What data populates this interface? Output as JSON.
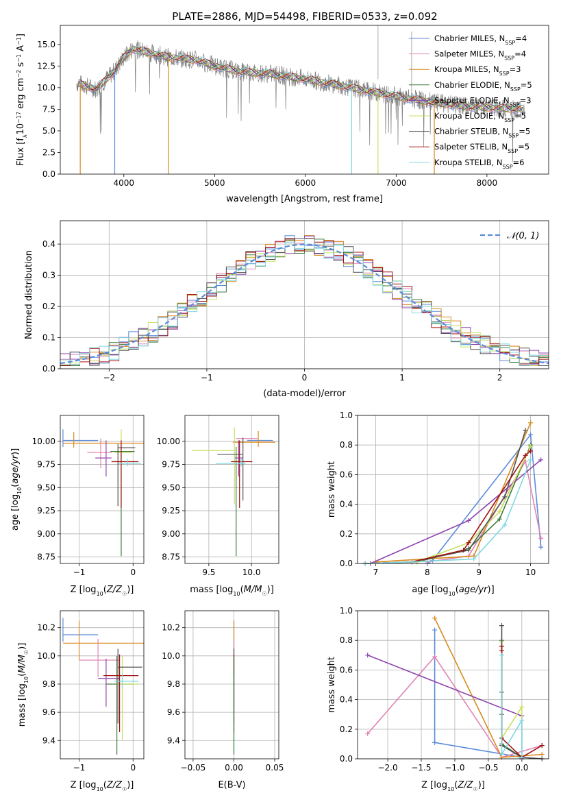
{
  "figure_title": "PLATE=2886, MJD=54498, FIBERID=0533, z=0.092",
  "series_colors": {
    "Chabrier MILES": "#5b8bd9",
    "Salpeter MILES": "#e084b4",
    "Kroupa MILES": "#d88a1c",
    "Chabrier ELODIE": "#3e7a3e",
    "Salpeter ELODIE": "#8e44ad",
    "Kroupa ELODIE": "#c8e060",
    "Chabrier STELIB": "#505050",
    "Salpeter STELIB": "#a01010",
    "Kroupa STELIB": "#7fd8e0"
  },
  "chart_data": [
    {
      "id": "spectrum",
      "type": "line",
      "xlabel": "wavelength [Angstrom, rest frame]",
      "ylabel": "Flux [f_λ10^-17 erg cm^-2 s^-1 A^-1]",
      "xlim": [
        3300,
        8680
      ],
      "ylim": [
        0,
        17.2
      ],
      "xticks": [
        4000,
        5000,
        6000,
        7000,
        8000
      ],
      "yticks": [
        0.0,
        2.5,
        5.0,
        7.5,
        10.0,
        12.5,
        15.0
      ],
      "grid": false,
      "legend_position": "upper right",
      "legend": [
        {
          "name": "Chabrier MILES",
          "nssp": "4"
        },
        {
          "name": "Salpeter MILES",
          "nssp": "4"
        },
        {
          "name": "Kroupa MILES",
          "nssp": "3"
        },
        {
          "name": "Chabrier ELODIE",
          "nssp": "5"
        },
        {
          "name": "Salpeter ELODIE",
          "nssp": "3"
        },
        {
          "name": "Kroupa ELODIE",
          "nssp": "5"
        },
        {
          "name": "Chabrier STELIB",
          "nssp": "5"
        },
        {
          "name": "Salpeter STELIB",
          "nssp": "5"
        },
        {
          "name": "Kroupa STELIB",
          "nssp": "6"
        }
      ],
      "data_envelope": {
        "x": [
          3500,
          3700,
          3900,
          4000,
          4100,
          4300,
          4500,
          4800,
          5000,
          5300,
          5600,
          6000,
          6500,
          7000,
          7400,
          7800,
          8400
        ],
        "y": [
          10.5,
          9.8,
          12.0,
          13.5,
          14.5,
          14.0,
          13.5,
          13.2,
          12.5,
          11.8,
          11.6,
          11.0,
          10.0,
          9.0,
          8.3,
          7.8,
          7.5
        ]
      },
      "model_spikes": [
        {
          "x": 3520,
          "series": "Kroupa MILES"
        },
        {
          "x": 3900,
          "series": "Chabrier MILES"
        },
        {
          "x": 4490,
          "series": "Kroupa MILES"
        },
        {
          "x": 6510,
          "series": "Kroupa STELIB"
        },
        {
          "x": 6800,
          "series": "Kroupa ELODIE"
        },
        {
          "x": 7420,
          "series": "Kroupa MILES"
        }
      ]
    },
    {
      "id": "residuals",
      "type": "step",
      "xlabel": "(data-model)/error",
      "ylabel": "Normed distribution",
      "xlim": [
        -2.5,
        2.5
      ],
      "ylim": [
        0,
        0.475
      ],
      "xticks": [
        -2,
        -1,
        0,
        1,
        2
      ],
      "yticks": [
        0.0,
        0.1,
        0.2,
        0.3,
        0.4
      ],
      "grid": true,
      "legend_position": "upper right",
      "legend": [
        {
          "name": "𝒩(0, 1)",
          "color": "#5b8bd9",
          "style": "dashed"
        }
      ],
      "bin_width": 0.1,
      "note_bins": "histograms approximate a unit normal"
    },
    {
      "id": "age_vs_Z",
      "type": "errorbar",
      "xlabel": "Z [log10(Z/Z☉)]",
      "ylabel": "age  [log10(age/yr)]",
      "xlim": [
        -1.35,
        0.2
      ],
      "ylim": [
        8.68,
        10.28
      ],
      "xticks": [
        -1,
        0
      ],
      "yticks": [
        8.75,
        9.0,
        9.25,
        9.5,
        9.75,
        10.0
      ],
      "grid": true,
      "points": [
        {
          "series": "Chabrier MILES",
          "x": -1.3,
          "y": 10.01,
          "xerr": [
            0.0,
            0.65
          ],
          "yerr": [
            0.07,
            0.12
          ]
        },
        {
          "series": "Salpeter MILES",
          "x": -0.6,
          "y": 9.88,
          "xerr": [
            0.25,
            0.2
          ],
          "yerr": [
            0.17,
            0.15
          ]
        },
        {
          "series": "Kroupa MILES",
          "x": -1.1,
          "y": 9.98,
          "xerr": [
            0.2,
            1.3
          ],
          "yerr": [
            0.05,
            0.12
          ]
        },
        {
          "series": "Chabrier ELODIE",
          "x": -0.22,
          "y": 9.89,
          "xerr": [
            0.2,
            0.25
          ],
          "yerr": [
            1.13,
            0.08
          ]
        },
        {
          "series": "Salpeter ELODIE",
          "x": -0.5,
          "y": 9.82,
          "xerr": [
            0.2,
            0.1
          ],
          "yerr": [
            0.2,
            0.19
          ]
        },
        {
          "series": "Kroupa ELODIE",
          "x": -0.22,
          "y": 9.88,
          "xerr": [
            0.12,
            0.2
          ],
          "yerr": [
            0.58,
            0.25
          ]
        },
        {
          "series": "Chabrier STELIB",
          "x": -0.28,
          "y": 9.93,
          "xerr": [
            0.0,
            0.32
          ],
          "yerr": [
            0.63,
            0.04
          ]
        },
        {
          "series": "Salpeter STELIB",
          "x": -0.22,
          "y": 9.78,
          "xerr": [
            0.18,
            0.32
          ],
          "yerr": [
            0.5,
            0.23
          ]
        },
        {
          "series": "Kroupa STELIB",
          "x": -0.1,
          "y": 9.76,
          "xerr": [
            0.17,
            0.25
          ],
          "yerr": [
            0.03,
            0.05
          ]
        }
      ]
    },
    {
      "id": "age_vs_mass",
      "type": "errorbar",
      "xlabel": "mass [log10(M/M☉)]",
      "ylabel": "",
      "xlim": [
        9.22,
        10.32
      ],
      "ylim": [
        8.68,
        10.28
      ],
      "xticks": [
        9.5,
        10.0
      ],
      "yticks": [
        8.75,
        9.0,
        9.25,
        9.5,
        9.75,
        10.0
      ],
      "grid": true,
      "points": [
        {
          "series": "Chabrier MILES",
          "x": 10.15,
          "y": 10.01,
          "xerr": [
            0.2,
            0.1
          ],
          "yerr": [
            0.0,
            0.0
          ]
        },
        {
          "series": "Salpeter MILES",
          "x": 9.97,
          "y": 10.03,
          "xerr": [
            0.15,
            0.1
          ],
          "yerr": [
            0.0,
            0.0
          ]
        },
        {
          "series": "Kroupa MILES",
          "x": 10.08,
          "y": 9.99,
          "xerr": [
            0.3,
            0.2
          ],
          "yerr": [
            0.05,
            0.12
          ]
        },
        {
          "series": "Chabrier ELODIE",
          "x": 9.82,
          "y": 9.89,
          "xerr": [
            0.0,
            0.0
          ],
          "yerr": [
            1.13,
            0.05
          ]
        },
        {
          "series": "Salpeter ELODIE",
          "x": 9.85,
          "y": 9.82,
          "xerr": [
            0.05,
            0.05
          ],
          "yerr": [
            0.2,
            0.19
          ]
        },
        {
          "series": "Kroupa ELODIE",
          "x": 9.8,
          "y": 9.9,
          "xerr": [
            0.5,
            0.0
          ],
          "yerr": [
            0.58,
            0.25
          ]
        },
        {
          "series": "Chabrier STELIB",
          "x": 9.9,
          "y": 9.86,
          "xerr": [
            0.3,
            0.0
          ],
          "yerr": [
            0.5,
            0.18
          ]
        },
        {
          "series": "Salpeter STELIB",
          "x": 9.86,
          "y": 9.78,
          "xerr": [
            0.1,
            0.15
          ],
          "yerr": [
            0.5,
            0.23
          ]
        },
        {
          "series": "Kroupa STELIB",
          "x": 9.88,
          "y": 9.76,
          "xerr": [
            0.3,
            0.05
          ],
          "yerr": [
            0.03,
            0.05
          ]
        }
      ]
    },
    {
      "id": "weight_vs_age",
      "type": "line",
      "xlabel": "age  [log10(age/yr)]",
      "ylabel": "mass weight",
      "xlim": [
        6.65,
        10.35
      ],
      "ylim": [
        0,
        1.0
      ],
      "xticks": [
        7,
        8,
        9,
        10
      ],
      "yticks": [
        0.0,
        0.2,
        0.4,
        0.6,
        0.8,
        1.0
      ],
      "grid": true,
      "series": [
        {
          "name": "Chabrier MILES",
          "x": [
            8.0,
            8.1,
            10.0,
            10.2
          ],
          "y": [
            0.0,
            0.02,
            0.87,
            0.11
          ]
        },
        {
          "name": "Salpeter MILES",
          "x": [
            8.0,
            8.8,
            9.9,
            10.2
          ],
          "y": [
            0.01,
            0.05,
            0.69,
            0.17
          ]
        },
        {
          "name": "Kroupa MILES",
          "x": [
            7.0,
            8.9,
            10.0
          ],
          "y": [
            0.01,
            0.05,
            0.95
          ]
        },
        {
          "name": "Chabrier ELODIE",
          "x": [
            6.8,
            7.8,
            8.8,
            9.4,
            10.0
          ],
          "y": [
            0.0,
            0.01,
            0.1,
            0.3,
            0.8
          ]
        },
        {
          "name": "Salpeter ELODIE",
          "x": [
            6.9,
            8.8,
            10.2
          ],
          "y": [
            0.0,
            0.29,
            0.7
          ]
        },
        {
          "name": "Kroupa ELODIE",
          "x": [
            6.8,
            7.8,
            8.8,
            9.4,
            10.0
          ],
          "y": [
            0.0,
            0.01,
            0.14,
            0.35,
            0.79
          ]
        },
        {
          "name": "Chabrier STELIB",
          "x": [
            6.8,
            7.7,
            8.8,
            9.5,
            9.9
          ],
          "y": [
            0.0,
            0.01,
            0.09,
            0.45,
            0.9
          ]
        },
        {
          "name": "Salpeter STELIB",
          "x": [
            6.8,
            7.7,
            8.7,
            8.8,
            9.9,
            10.0
          ],
          "y": [
            0.0,
            0.01,
            0.09,
            0.14,
            0.73,
            0.76
          ]
        },
        {
          "name": "Kroupa STELIB",
          "x": [
            6.8,
            7.7,
            8.9,
            9.5,
            10.0
          ],
          "y": [
            0.0,
            0.01,
            0.03,
            0.26,
            0.7
          ]
        }
      ]
    },
    {
      "id": "mass_vs_Z",
      "type": "errorbar",
      "xlabel": "Z [log10(Z/Z☉)]",
      "ylabel": "mass [log10(M/M☉)]",
      "xlim": [
        -1.35,
        0.2
      ],
      "ylim": [
        9.27,
        10.32
      ],
      "xticks": [
        -1,
        0
      ],
      "yticks": [
        9.4,
        9.6,
        9.8,
        10.0,
        10.2
      ],
      "grid": true,
      "points": [
        {
          "series": "Chabrier MILES",
          "x": -1.3,
          "y": 10.15,
          "xerr": [
            0.0,
            0.65
          ],
          "yerr": [
            0.05,
            0.12
          ]
        },
        {
          "series": "Salpeter MILES",
          "x": -0.65,
          "y": 9.97,
          "xerr": [
            0.35,
            0.4
          ],
          "yerr": [
            0.12,
            0.15
          ]
        },
        {
          "series": "Kroupa MILES",
          "x": -1.0,
          "y": 10.09,
          "xerr": [
            0.3,
            1.2
          ],
          "yerr": [
            0.12,
            0.16
          ]
        },
        {
          "series": "Chabrier ELODIE",
          "x": -0.3,
          "y": 9.8,
          "xerr": [
            0.2,
            0.3
          ],
          "yerr": [
            0.5,
            0.2
          ]
        },
        {
          "series": "Salpeter ELODIE",
          "x": -0.5,
          "y": 9.84,
          "xerr": [
            0.15,
            0.25
          ],
          "yerr": [
            0.2,
            0.14
          ]
        },
        {
          "series": "Kroupa ELODIE",
          "x": -0.2,
          "y": 9.8,
          "xerr": [
            0.1,
            0.3
          ],
          "yerr": [
            0.4,
            0.2
          ]
        },
        {
          "series": "Chabrier STELIB",
          "x": -0.28,
          "y": 9.92,
          "xerr": [
            0.0,
            0.45
          ],
          "yerr": [
            0.4,
            0.13
          ]
        },
        {
          "series": "Salpeter STELIB",
          "x": -0.25,
          "y": 9.86,
          "xerr": [
            0.3,
            0.35
          ],
          "yerr": [
            0.4,
            0.15
          ]
        },
        {
          "series": "Kroupa STELIB",
          "x": -0.2,
          "y": 9.82,
          "xerr": [
            0.15,
            0.3
          ],
          "yerr": [
            0.05,
            0.05
          ]
        }
      ]
    },
    {
      "id": "mass_vs_ebv",
      "type": "errorbar",
      "xlabel": "E(B-V)",
      "ylabel": "",
      "xlim": [
        -0.06,
        0.055
      ],
      "ylim": [
        9.27,
        10.32
      ],
      "xticks": [
        -0.05,
        0.0,
        0.05
      ],
      "yticks": [
        9.4,
        9.6,
        9.8,
        10.0,
        10.2
      ],
      "grid": true,
      "points": [
        {
          "series": "Chabrier MILES",
          "x": 0.0,
          "y": 10.15,
          "xerr": [
            0,
            0
          ],
          "yerr": [
            0.12,
            0.1
          ]
        },
        {
          "series": "Kroupa MILES",
          "x": 0.0,
          "y": 10.09,
          "xerr": [
            0,
            0
          ],
          "yerr": [
            0.12,
            0.16
          ]
        },
        {
          "series": "Salpeter MILES",
          "x": 0.0,
          "y": 9.97,
          "xerr": [
            0,
            0
          ],
          "yerr": [
            0.12,
            0.15
          ]
        },
        {
          "series": "Salpeter ELODIE",
          "x": 0.0,
          "y": 9.84,
          "xerr": [
            0,
            0
          ],
          "yerr": [
            0.2,
            0.14
          ]
        },
        {
          "series": "Kroupa ELODIE",
          "x": 0.0,
          "y": 9.8,
          "xerr": [
            0,
            0
          ],
          "yerr": [
            0.4,
            0.2
          ]
        },
        {
          "series": "Chabrier STELIB",
          "x": 0.0,
          "y": 9.92,
          "xerr": [
            0,
            0
          ],
          "yerr": [
            0.4,
            0.13
          ]
        },
        {
          "series": "Salpeter STELIB",
          "x": 0.0,
          "y": 9.86,
          "xerr": [
            0,
            0
          ],
          "yerr": [
            0.4,
            0.15
          ]
        },
        {
          "series": "Kroupa STELIB",
          "x": 0.0,
          "y": 9.82,
          "xerr": [
            0,
            0
          ],
          "yerr": [
            0.5,
            0.05
          ]
        },
        {
          "series": "Chabrier ELODIE",
          "x": 0.0,
          "y": 9.8,
          "xerr": [
            0,
            0
          ],
          "yerr": [
            0.5,
            0.2
          ]
        }
      ]
    },
    {
      "id": "weight_vs_Z",
      "type": "line",
      "xlabel": "Z [log10(Z/Z☉)]",
      "ylabel": "mass weight",
      "xlim": [
        -2.45,
        0.4
      ],
      "ylim": [
        0,
        1.0
      ],
      "xticks": [
        -2.0,
        -1.5,
        -1.0,
        -0.5,
        0.0
      ],
      "yticks": [
        0.0,
        0.2,
        0.4,
        0.6,
        0.8,
        1.0
      ],
      "grid": true,
      "series": [
        {
          "name": "Chabrier MILES",
          "x": [
            -1.3,
            -1.3,
            -1.3,
            0.0,
            0.0
          ],
          "y": [
            0.87,
            0.11,
            0.11,
            0.01,
            0.02
          ]
        },
        {
          "name": "Salpeter MILES",
          "x": [
            -2.3,
            -1.3,
            -0.3,
            0.3
          ],
          "y": [
            0.17,
            0.69,
            0.01,
            0.09
          ]
        },
        {
          "name": "Kroupa MILES",
          "x": [
            -1.3,
            -0.3,
            0.3
          ],
          "y": [
            0.95,
            0.01,
            0.03
          ]
        },
        {
          "name": "Chabrier ELODIE",
          "x": [
            -0.3,
            -0.3,
            -0.3,
            0.0,
            0.0
          ],
          "y": [
            0.8,
            0.3,
            0.1,
            0.01,
            0.0
          ]
        },
        {
          "name": "Salpeter ELODIE",
          "x": [
            -2.3,
            0.0,
            0.0
          ],
          "y": [
            0.7,
            0.29,
            0.0
          ]
        },
        {
          "name": "Kroupa ELODIE",
          "x": [
            -0.3,
            -0.3,
            0.0,
            0.0
          ],
          "y": [
            0.79,
            0.14,
            0.35,
            0.01
          ]
        },
        {
          "name": "Chabrier STELIB",
          "x": [
            -0.3,
            -0.3,
            -0.3,
            0.0,
            0.3
          ],
          "y": [
            0.9,
            0.45,
            0.09,
            0.01,
            0.0
          ]
        },
        {
          "name": "Salpeter STELIB",
          "x": [
            -0.3,
            -0.3,
            -0.3,
            0.0,
            0.3
          ],
          "y": [
            0.76,
            0.73,
            0.14,
            0.01,
            0.09
          ]
        },
        {
          "name": "Kroupa STELIB",
          "x": [
            -0.3,
            -0.3,
            0.0,
            0.0
          ],
          "y": [
            0.7,
            0.03,
            0.26,
            0.01
          ]
        }
      ]
    }
  ]
}
